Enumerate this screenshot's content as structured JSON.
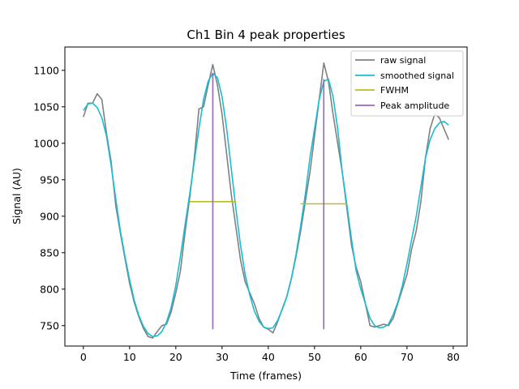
{
  "chart_data": {
    "type": "line",
    "title": "Ch1 Bin 4 peak properties",
    "xlabel": "Time (frames)",
    "ylabel": "Signal (AU)",
    "xlim": [
      -4,
      83
    ],
    "ylim": [
      722,
      1132
    ],
    "xticks": [
      0,
      10,
      20,
      30,
      40,
      50,
      60,
      70,
      80
    ],
    "yticks": [
      750,
      800,
      850,
      900,
      950,
      1000,
      1050,
      1100
    ],
    "grid": false,
    "legend_position": "top-right",
    "series": [
      {
        "name": "raw signal",
        "color": "#808080",
        "x": [
          0,
          1,
          2,
          3,
          4,
          5,
          6,
          7,
          8,
          9,
          10,
          11,
          12,
          13,
          14,
          15,
          16,
          17,
          18,
          19,
          20,
          21,
          22,
          23,
          24,
          25,
          26,
          27,
          28,
          29,
          30,
          31,
          32,
          33,
          34,
          35,
          36,
          37,
          38,
          39,
          40,
          41,
          42,
          43,
          44,
          45,
          46,
          47,
          48,
          49,
          50,
          51,
          52,
          53,
          54,
          55,
          56,
          57,
          58,
          59,
          60,
          61,
          62,
          63,
          64,
          65,
          66,
          67,
          68,
          69,
          70,
          71,
          72,
          73,
          74,
          75,
          76,
          77,
          78,
          79
        ],
        "y": [
          1036,
          1055,
          1055,
          1068,
          1060,
          1014,
          975,
          915,
          877,
          842,
          808,
          782,
          762,
          746,
          735,
          733,
          742,
          750,
          752,
          769,
          795,
          825,
          878,
          925,
          980,
          1047,
          1050,
          1080,
          1108,
          1080,
          1040,
          985,
          930,
          885,
          840,
          810,
          795,
          780,
          760,
          748,
          745,
          740,
          755,
          773,
          790,
          815,
          845,
          880,
          920,
          960,
          1010,
          1060,
          1110,
          1085,
          1040,
          1000,
          960,
          910,
          860,
          830,
          810,
          780,
          750,
          748,
          750,
          752,
          750,
          760,
          780,
          800,
          820,
          855,
          880,
          920,
          980,
          1020,
          1040,
          1035,
          1020,
          1005
        ]
      },
      {
        "name": "smoothed signal",
        "color": "#17becf",
        "x": [
          0,
          1,
          2,
          3,
          4,
          5,
          6,
          7,
          8,
          9,
          10,
          11,
          12,
          13,
          14,
          15,
          16,
          17,
          18,
          19,
          20,
          21,
          22,
          23,
          24,
          25,
          26,
          27,
          28,
          29,
          30,
          31,
          32,
          33,
          34,
          35,
          36,
          37,
          38,
          39,
          40,
          41,
          42,
          43,
          44,
          45,
          46,
          47,
          48,
          49,
          50,
          51,
          52,
          53,
          54,
          55,
          56,
          57,
          58,
          59,
          60,
          61,
          62,
          63,
          64,
          65,
          66,
          67,
          68,
          69,
          70,
          71,
          72,
          73,
          74,
          75,
          76,
          77,
          78,
          79
        ],
        "y": [
          1045,
          1054,
          1055,
          1049,
          1035,
          1010,
          970,
          924,
          880,
          845,
          813,
          785,
          764,
          749,
          739,
          735,
          736,
          742,
          755,
          775,
          805,
          845,
          888,
          930,
          975,
          1020,
          1060,
          1085,
          1096,
          1090,
          1064,
          1020,
          965,
          910,
          860,
          820,
          792,
          770,
          756,
          748,
          746,
          747,
          757,
          772,
          790,
          815,
          848,
          887,
          930,
          980,
          1020,
          1060,
          1085,
          1088,
          1064,
          1020,
          960,
          915,
          868,
          825,
          800,
          780,
          760,
          750,
          747,
          748,
          752,
          765,
          782,
          805,
          835,
          868,
          900,
          940,
          980,
          1005,
          1020,
          1028,
          1030,
          1025
        ]
      }
    ],
    "fwhm": {
      "name": "FWHM",
      "color": "#bcbd22",
      "segments": [
        {
          "x_start": 23,
          "x_end": 33,
          "y": 920
        },
        {
          "x_start": 47,
          "x_end": 57,
          "y": 917
        }
      ]
    },
    "peak_amplitude": {
      "name": "Peak amplitude",
      "color": "#9467bd",
      "segments": [
        {
          "x": 28,
          "y_start": 745,
          "y_end": 1096
        },
        {
          "x": 52,
          "y_start": 745,
          "y_end": 1088
        }
      ]
    }
  }
}
